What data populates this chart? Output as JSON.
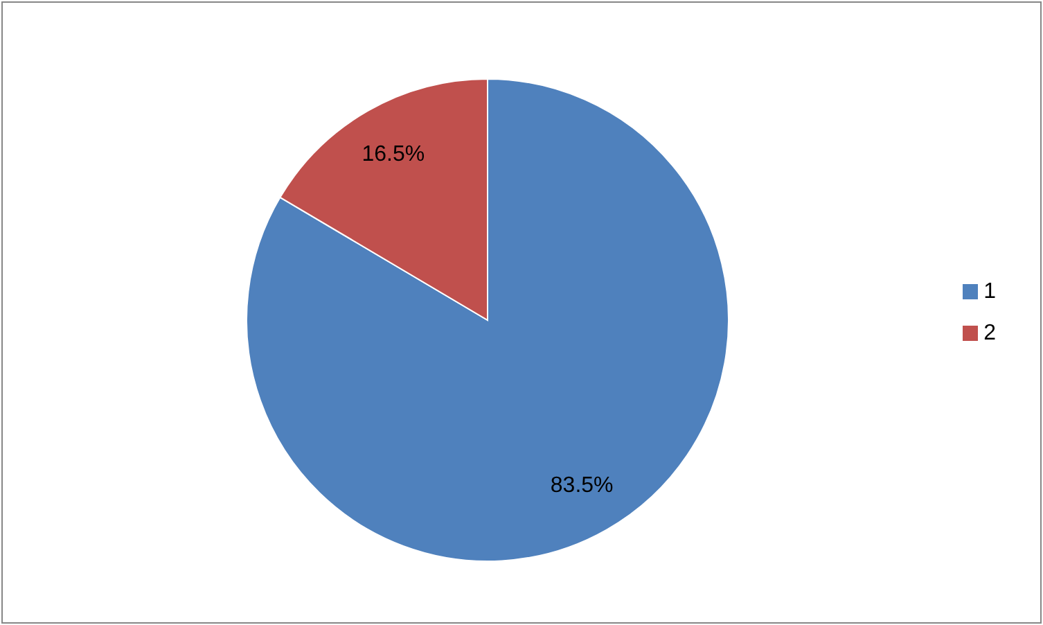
{
  "chart_data": {
    "type": "pie",
    "categories": [
      "1",
      "2"
    ],
    "values": [
      83.5,
      16.5
    ],
    "colors": [
      "#4f81bd",
      "#c0504d"
    ],
    "value_labels": [
      "83.5%",
      "16.5%"
    ],
    "legend": "right"
  }
}
